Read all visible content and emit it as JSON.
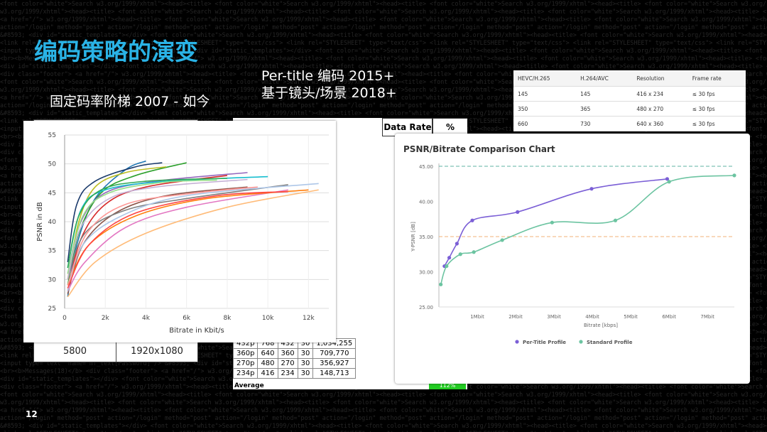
{
  "slide": {
    "title": "编码策略的演变",
    "subtitle_per_title": "Per-title 编码 2015+",
    "subtitle_shot": "基于镜头/场景 2018+",
    "subtitle_fixed": "固定码率阶梯 2007 - 如今",
    "page_number": "12",
    "accent_color": "#2ab3e6"
  },
  "fixed_ladder_table": {
    "bitrate": "5800",
    "resolution": "1920x1080"
  },
  "per_title_table": {
    "header_data_rate": "Data Rate",
    "header_jump": "% Jump",
    "rows": [
      [
        "432p",
        "768",
        "432",
        "30",
        "1,034,255"
      ],
      [
        "360p",
        "640",
        "360",
        "30",
        "709,770"
      ],
      [
        "270p",
        "480",
        "270",
        "30",
        "356,927"
      ],
      [
        "234p",
        "416",
        "234",
        "30",
        "148,713"
      ]
    ],
    "average_label": "Average",
    "average_value": "112%"
  },
  "codec_table": {
    "headers": [
      "HEVC/H.265",
      "H.264/AVC",
      "Resolution",
      "Frame rate"
    ],
    "rows": [
      [
        "145",
        "145",
        "416 x 234",
        "≤ 30 fps"
      ],
      [
        "350",
        "365",
        "480 x 270",
        "≤ 30 fps"
      ],
      [
        "660",
        "730",
        "640 x 360",
        "≤ 30 fps"
      ]
    ]
  },
  "chart_data": [
    {
      "type": "line",
      "title": "",
      "xlabel": "Bitrate in Kbit/s",
      "ylabel": "PSNR in dB",
      "xlim": [
        0,
        13000
      ],
      "ylim": [
        25,
        55
      ],
      "xticks": [
        "0",
        "2k",
        "4k",
        "6k",
        "8k",
        "10k",
        "12k"
      ],
      "yticks": [
        "25",
        "30",
        "35",
        "40",
        "45",
        "50",
        "55"
      ],
      "grid": true,
      "series": [
        {
          "color": "#1f77b4",
          "values": [
            [
              150,
              27
            ],
            [
              600,
              36
            ],
            [
              1500,
              44
            ],
            [
              3000,
              49
            ],
            [
              4000,
              50.5
            ]
          ]
        },
        {
          "color": "#2ca02c",
          "values": [
            [
              150,
              29
            ],
            [
              700,
              38
            ],
            [
              1800,
              45
            ],
            [
              3500,
              48
            ],
            [
              6000,
              50.2
            ]
          ]
        },
        {
          "color": "#d62728",
          "values": [
            [
              150,
              28
            ],
            [
              800,
              37
            ],
            [
              2000,
              43
            ],
            [
              4000,
              46
            ],
            [
              8000,
              48
            ]
          ]
        },
        {
          "color": "#9467bd",
          "values": [
            [
              150,
              31
            ],
            [
              800,
              40
            ],
            [
              2000,
              45
            ],
            [
              4500,
              47
            ],
            [
              9000,
              48.5
            ]
          ]
        },
        {
          "color": "#8c564b",
          "values": [
            [
              150,
              27.5
            ],
            [
              900,
              36
            ],
            [
              2500,
              41.5
            ],
            [
              5000,
              44.5
            ],
            [
              9000,
              46
            ]
          ]
        },
        {
          "color": "#e377c2",
          "values": [
            [
              150,
              28
            ],
            [
              1000,
              33
            ],
            [
              3000,
              39
            ],
            [
              6000,
              42.5
            ],
            [
              11000,
              45.5
            ]
          ]
        },
        {
          "color": "#ff7f0e",
          "values": [
            [
              150,
              29
            ],
            [
              1200,
              36
            ],
            [
              3500,
              41
            ],
            [
              7000,
              44
            ],
            [
              12000,
              45.5
            ]
          ]
        },
        {
          "color": "#bcbd22",
          "values": [
            [
              150,
              30
            ],
            [
              700,
              40
            ],
            [
              1500,
              46
            ],
            [
              3000,
              48.5
            ],
            [
              5000,
              49.5
            ]
          ]
        },
        {
          "color": "#17becf",
          "values": [
            [
              150,
              32
            ],
            [
              800,
              42
            ],
            [
              2000,
              45.5
            ],
            [
              5000,
              47
            ],
            [
              10000,
              47.8
            ]
          ]
        },
        {
          "color": "#7f7f7f",
          "values": [
            [
              150,
              30
            ],
            [
              1000,
              38
            ],
            [
              3000,
              42
            ],
            [
              6000,
              44
            ],
            [
              11000,
              46.4
            ]
          ]
        },
        {
          "color": "#aec7e8",
          "values": [
            [
              150,
              28
            ],
            [
              900,
              36
            ],
            [
              2800,
              41
            ],
            [
              6000,
              44.5
            ],
            [
              12500,
              46.6
            ]
          ]
        },
        {
          "color": "#ffbb78",
          "values": [
            [
              150,
              27
            ],
            [
              1500,
              33
            ],
            [
              4000,
              38
            ],
            [
              8000,
              42.5
            ],
            [
              12500,
              45.5
            ]
          ]
        },
        {
          "color": "#98df8a",
          "values": [
            [
              150,
              31
            ],
            [
              900,
              41
            ],
            [
              2200,
              45
            ],
            [
              4800,
              46.8
            ],
            [
              7500,
              47.2
            ]
          ]
        },
        {
          "color": "#ff9896",
          "values": [
            [
              150,
              29
            ],
            [
              1100,
              38
            ],
            [
              3000,
              43
            ],
            [
              6500,
              45
            ],
            [
              9500,
              46
            ]
          ]
        },
        {
          "color": "#c5b0d5",
          "values": [
            [
              150,
              30
            ],
            [
              800,
              39
            ],
            [
              2200,
              44
            ],
            [
              4500,
              46
            ],
            [
              9000,
              47.3
            ]
          ]
        },
        {
          "color": "#1a3a6b",
          "values": [
            [
              150,
              33
            ],
            [
              600,
              43
            ],
            [
              1500,
              47
            ],
            [
              3500,
              49.5
            ],
            [
              4800,
              50.2
            ]
          ]
        },
        {
          "color": "#ff4444",
          "values": [
            [
              150,
              28.5
            ],
            [
              1200,
              36
            ],
            [
              3500,
              41.5
            ],
            [
              7500,
              44.5
            ],
            [
              11000,
              45.2
            ]
          ]
        },
        {
          "color": "#33aa55",
          "values": [
            [
              150,
              32
            ],
            [
              700,
              41
            ],
            [
              1800,
              45.5
            ],
            [
              4000,
              47
            ],
            [
              8000,
              47.5
            ]
          ]
        }
      ]
    },
    {
      "type": "line",
      "title": "PSNR/Bitrate Comparison Chart",
      "xlabel": "Bitrate [kbps]",
      "ylabel": "Y-PSNR [dB]",
      "xlim": [
        0,
        7700
      ],
      "ylim": [
        25,
        45
      ],
      "xticks": [
        "1Mbit",
        "2Mbit",
        "3Mbit",
        "4Mbit",
        "5Mbit",
        "6Mbit",
        "7Mbit"
      ],
      "yticks": [
        "25.00",
        "30.00",
        "35.00",
        "40.00",
        "45.00"
      ],
      "reference_lines": [
        {
          "y": 45,
          "color": "#5fb3a3"
        },
        {
          "y": 35,
          "color": "#f0b27a"
        }
      ],
      "legend": "bottom",
      "series": [
        {
          "name": "Per-Title Profile",
          "color": "#7b5fd6",
          "values": [
            [
              145,
              30.8
            ],
            [
              270,
              32
            ],
            [
              470,
              34
            ],
            [
              870,
              37.3
            ],
            [
              2050,
              38.5
            ],
            [
              3980,
              41.8
            ],
            [
              5950,
              43.2
            ]
          ]
        },
        {
          "name": "Standard Profile",
          "color": "#6cc4a1",
          "values": [
            [
              50,
              28.2
            ],
            [
              200,
              30.8
            ],
            [
              560,
              32.5
            ],
            [
              910,
              32.8
            ],
            [
              1650,
              34.5
            ],
            [
              2950,
              37
            ],
            [
              4600,
              37.3
            ],
            [
              6000,
              42.8
            ],
            [
              7700,
              43.7
            ]
          ]
        }
      ]
    }
  ]
}
